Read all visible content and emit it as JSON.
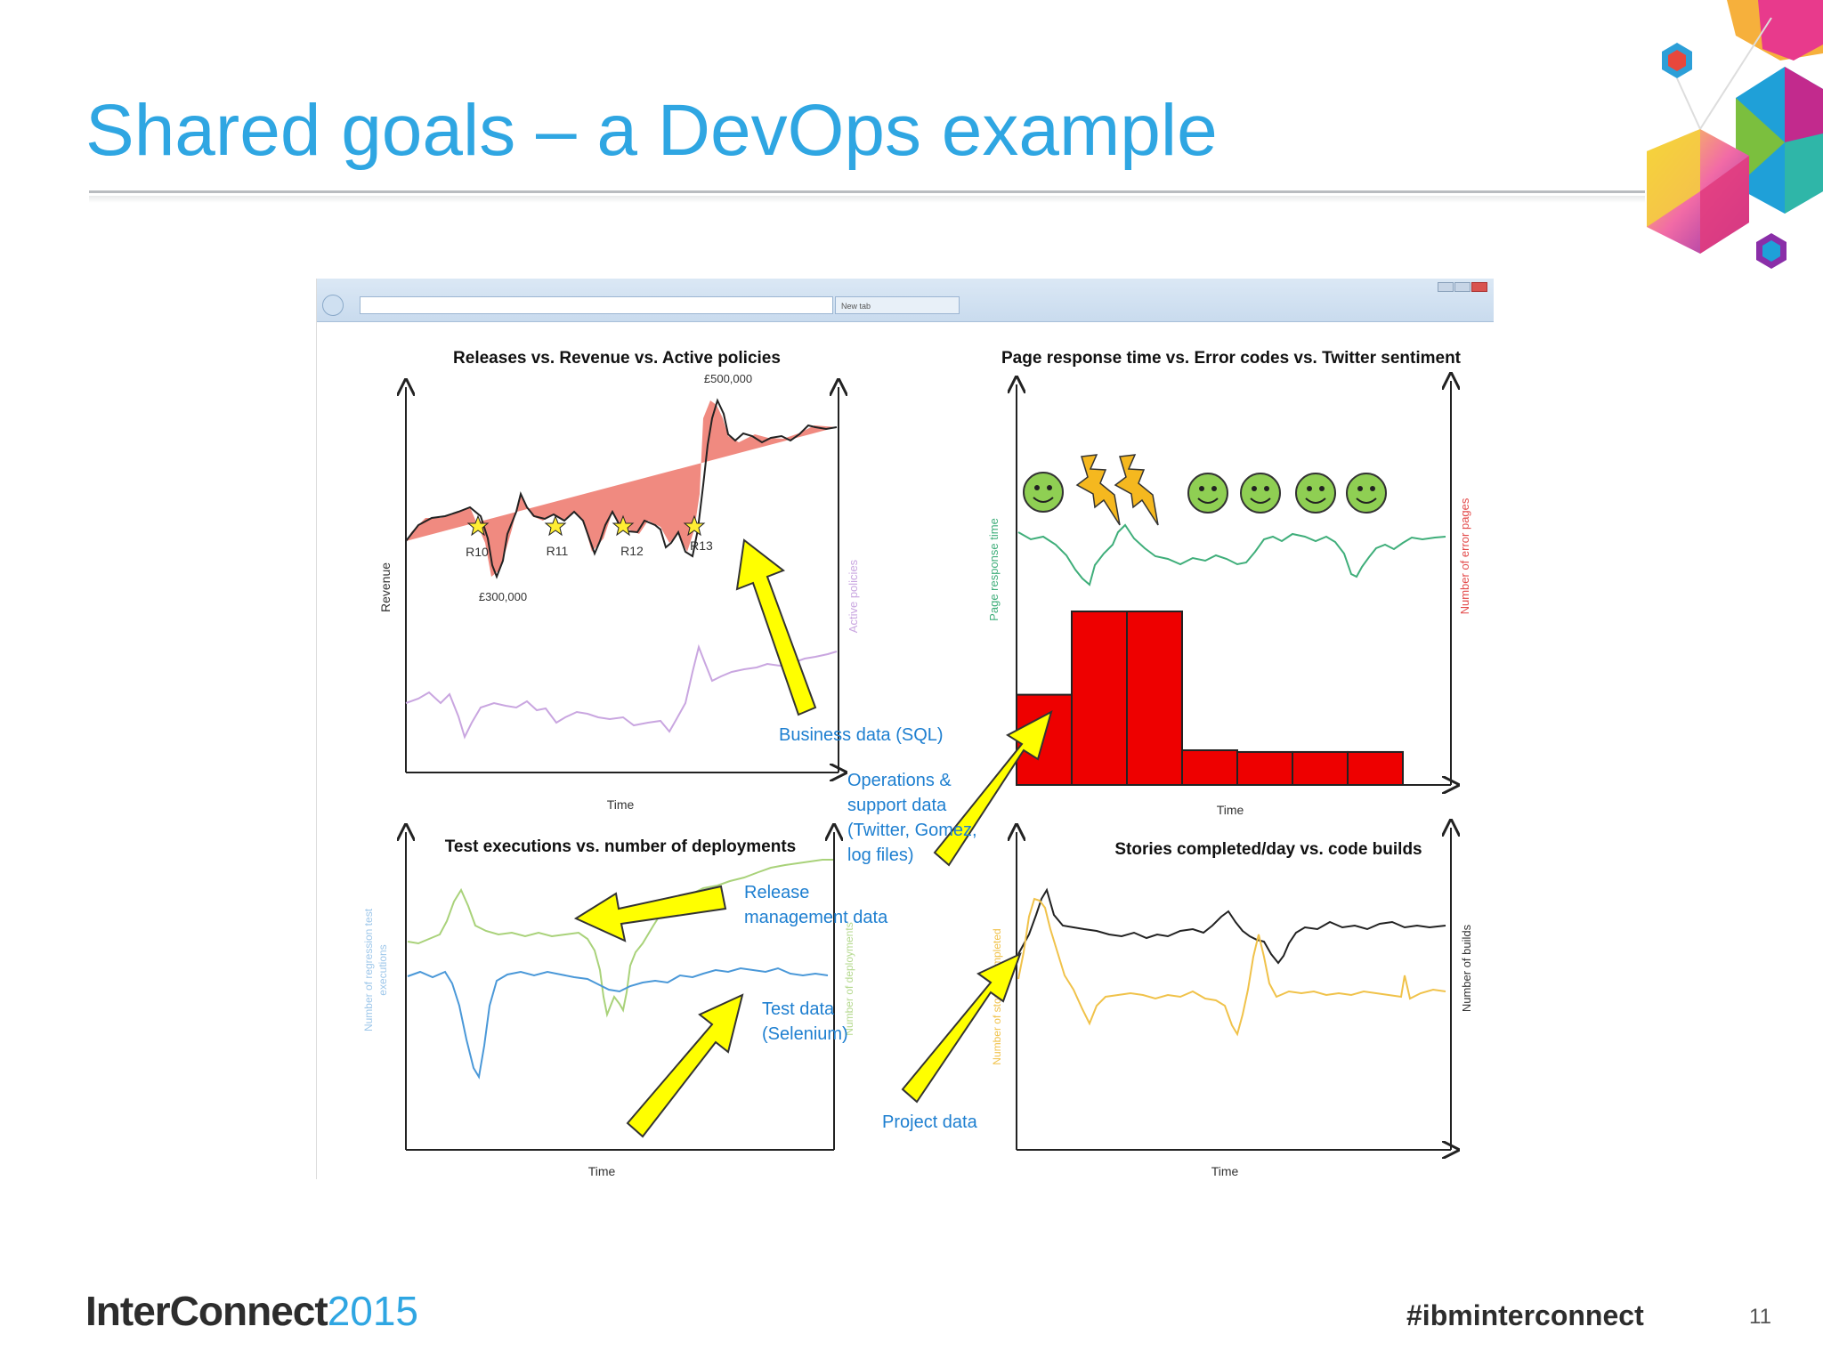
{
  "slide": {
    "title": "Shared goals – a DevOps example",
    "page_number": "11",
    "hashtag": "#ibminterconnect",
    "brand_bold": "InterConnect",
    "brand_year": "2015"
  },
  "browser": {
    "tab_label": "New tab"
  },
  "charts": {
    "tl_title": "Releases  vs. Revenue vs. Active policies",
    "tl_ylabel": "Revenue",
    "tl_ylabel_right": "Active policies",
    "tl_xlabel": "Time",
    "tl_high": "£500,000",
    "tl_low": "£300,000",
    "releases": [
      "R10",
      "R11",
      "R12",
      "R13"
    ],
    "tr_title": "Page response time vs. Error codes vs. Twitter sentiment",
    "tr_ylabel": "Page response time",
    "tr_ylabel_right": "Number of error pages",
    "tr_xlabel": "Time",
    "bl_title": "Test executions vs. number of deployments",
    "bl_ylabel_1": "Number of regression test",
    "bl_ylabel_2": "executions",
    "bl_ylabel_right": "Number of deployments",
    "bl_xlabel": "Time",
    "br_title": "Stories completed/day vs. code builds",
    "br_ylabel": "Number of stories completed",
    "br_ylabel_right": "Number of builds",
    "br_xlabel": "Time"
  },
  "annotations": {
    "business_1": "Business data (SQL)",
    "ops_1": "Operations &",
    "ops_2": "support data",
    "ops_3": "(Twitter, Gomez,",
    "ops_4": "log files)",
    "release_1": "Release",
    "release_2": "management data",
    "test_1": "Test data",
    "test_2": "(Selenium)",
    "project_1": "Project data"
  },
  "colors": {
    "accent_blue": "#2fa6e2",
    "annotation_blue": "#1e7fd0",
    "arrow_yellow": "#ffff00",
    "bar_red": "#ee0000",
    "revenue_fill": "#f08a80",
    "policies_line": "#c9a6e0",
    "response_green": "#3fae7a",
    "tests_green": "#a9d27a",
    "deploy_blue": "#4a98d8",
    "builds_yellow": "#f0c24a"
  },
  "chart_data": [
    {
      "type": "area",
      "title": "Releases  vs. Revenue vs. Active policies",
      "xlabel": "Time",
      "ylabel": "Revenue",
      "series": [
        {
          "name": "Revenue",
          "values": [
            355000,
            365000,
            370000,
            372000,
            300000,
            372000,
            360000,
            355000,
            340000,
            350000,
            345000,
            352000,
            340000,
            500000,
            455000,
            450000,
            448000
          ]
        },
        {
          "name": "Active policies",
          "values": [
            0.3,
            0.33,
            0.22,
            0.32,
            0.26,
            0.29,
            0.27,
            0.26,
            0.22,
            0.5,
            0.45,
            0.5,
            0.55
          ]
        }
      ],
      "annotations": [
        "R10",
        "R11",
        "R12",
        "R13",
        "£500,000",
        "£300,000"
      ]
    },
    {
      "type": "bar",
      "title": "Page response time vs. Error codes vs. Twitter sentiment",
      "xlabel": "Time",
      "ylabel": "Page response time",
      "series": [
        {
          "name": "Number of error pages",
          "values": [
            0.52,
            1.0,
            1.0,
            0.2,
            0.19,
            0.19,
            0.19
          ]
        }
      ]
    },
    {
      "type": "line",
      "title": "Test executions vs. number of deployments",
      "xlabel": "Time",
      "ylabel": "Number of regression test executions"
    },
    {
      "type": "line",
      "title": "Stories completed/day vs. code builds",
      "xlabel": "Time",
      "ylabel": "Number of builds"
    }
  ]
}
